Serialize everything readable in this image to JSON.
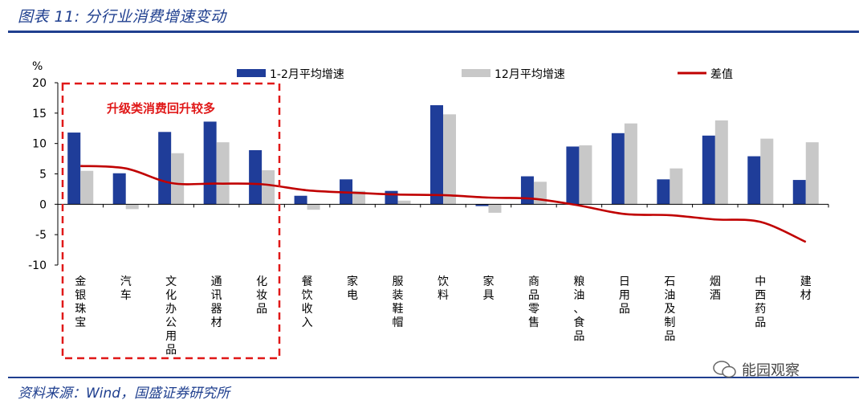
{
  "figure_title": "图表 11:  分行业消费增速变动",
  "source": "资料来源：Wind，国盛证券研究所",
  "watermark": "能园观察",
  "annotation": "升级类消费回升较多",
  "colors": {
    "series1": "#1f3d99",
    "series2": "#c8c8c8",
    "line": "#c00000",
    "annot": "#e01818",
    "brand": "#1f3f8f"
  },
  "chart_data": {
    "type": "bar",
    "ylabel": "%",
    "ylim": [
      -10,
      20
    ],
    "yticks": [
      20,
      15,
      10,
      5,
      0,
      -5,
      -10
    ],
    "categories": [
      "金银珠宝",
      "汽车",
      "文化办公用品",
      "通讯器材",
      "化妆品",
      "餐饮收入",
      "家电",
      "服装鞋帽",
      "饮料",
      "家具",
      "商品零售",
      "粮油、食品",
      "日用品",
      "石油及制品",
      "烟酒",
      "中西药品",
      "建材"
    ],
    "series": [
      {
        "name": "1-2月平均增速",
        "kind": "bar",
        "values": [
          11.8,
          5.1,
          11.9,
          13.6,
          8.9,
          1.4,
          4.1,
          2.2,
          16.3,
          -0.3,
          4.6,
          9.5,
          11.7,
          4.1,
          11.3,
          7.9,
          4.0
        ]
      },
      {
        "name": "12月平均增速",
        "kind": "bar",
        "values": [
          5.5,
          -0.8,
          8.4,
          10.2,
          5.6,
          -0.9,
          2.2,
          0.6,
          14.8,
          -1.4,
          3.7,
          9.7,
          13.3,
          5.9,
          13.8,
          10.8,
          10.2
        ]
      },
      {
        "name": "差值",
        "kind": "line",
        "values": [
          6.3,
          5.9,
          3.5,
          3.4,
          3.3,
          2.3,
          1.9,
          1.6,
          1.5,
          1.1,
          0.9,
          -0.2,
          -1.6,
          -1.8,
          -2.5,
          -2.9,
          -6.2
        ]
      }
    ],
    "legend_position": "top"
  }
}
